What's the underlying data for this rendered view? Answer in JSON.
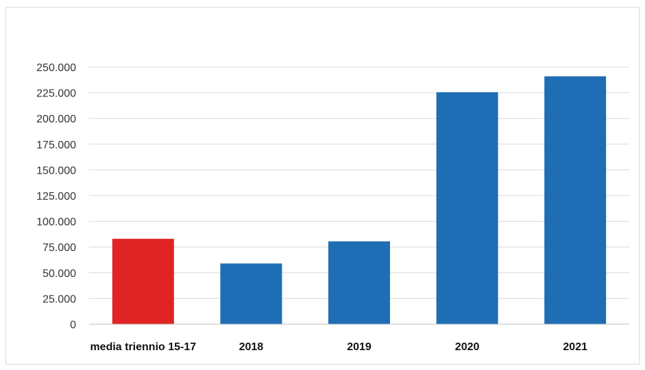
{
  "chart_data": {
    "type": "bar",
    "title": "",
    "xlabel": "",
    "ylabel": "",
    "categories": [
      "media triennio 15-17",
      "2018",
      "2019",
      "2020",
      "2021"
    ],
    "values": [
      83000,
      59000,
      80500,
      225500,
      241000
    ],
    "bar_colors": [
      "#e02424",
      "#1f6eb5",
      "#1f6eb5",
      "#1f6eb5",
      "#1f6eb5"
    ],
    "ylim": [
      0,
      250000
    ],
    "yticks": [
      0,
      25000,
      50000,
      75000,
      100000,
      125000,
      150000,
      175000,
      200000,
      225000,
      250000
    ],
    "ytick_labels": [
      "0",
      "25.000",
      "50.000",
      "75.000",
      "100.000",
      "125.000",
      "150.000",
      "175.000",
      "200.000",
      "225.000",
      "250.000"
    ],
    "grid": true,
    "legend": "none"
  }
}
